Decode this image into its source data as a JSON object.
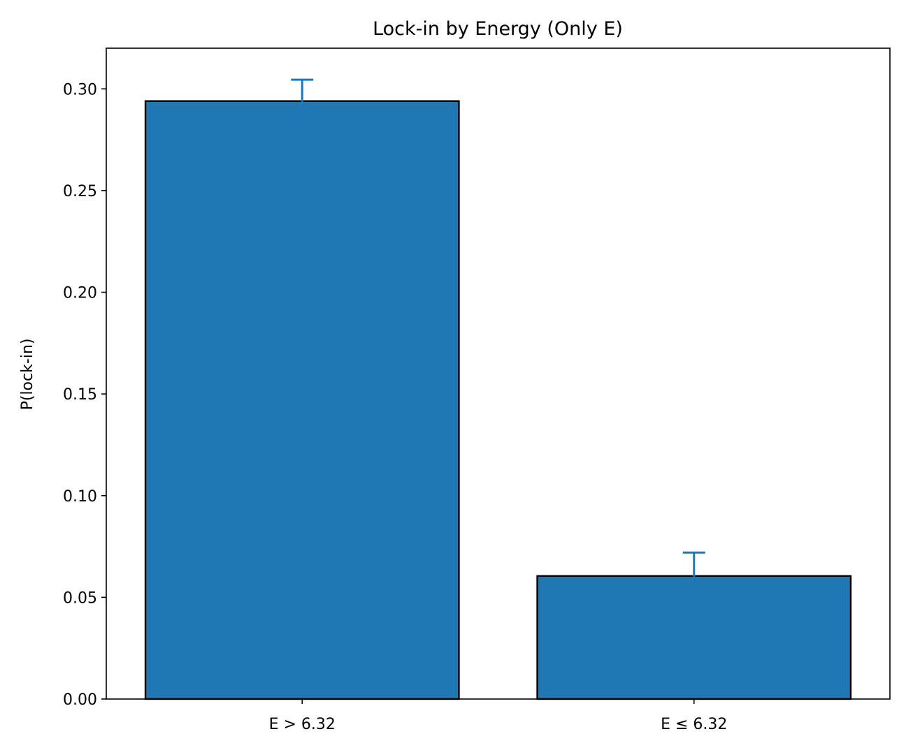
{
  "chart_data": {
    "type": "bar",
    "title": "Lock-in by Energy (Only E)",
    "xlabel": "",
    "ylabel": "P(lock-in)",
    "categories": [
      "E > 6.32",
      "E ≤ 6.32"
    ],
    "values": [
      0.294,
      0.0605
    ],
    "errors": [
      0.0105,
      0.0115
    ],
    "ylim": [
      0,
      0.32
    ],
    "yticks": [
      0.0,
      0.05,
      0.1,
      0.15,
      0.2,
      0.25,
      0.3
    ],
    "ytick_labels": [
      "0.00",
      "0.05",
      "0.10",
      "0.15",
      "0.20",
      "0.25",
      "0.30"
    ],
    "grid": false,
    "colors": {
      "bar": "#1f77b4",
      "error": "#1f77b4",
      "edge": "#000000"
    }
  }
}
